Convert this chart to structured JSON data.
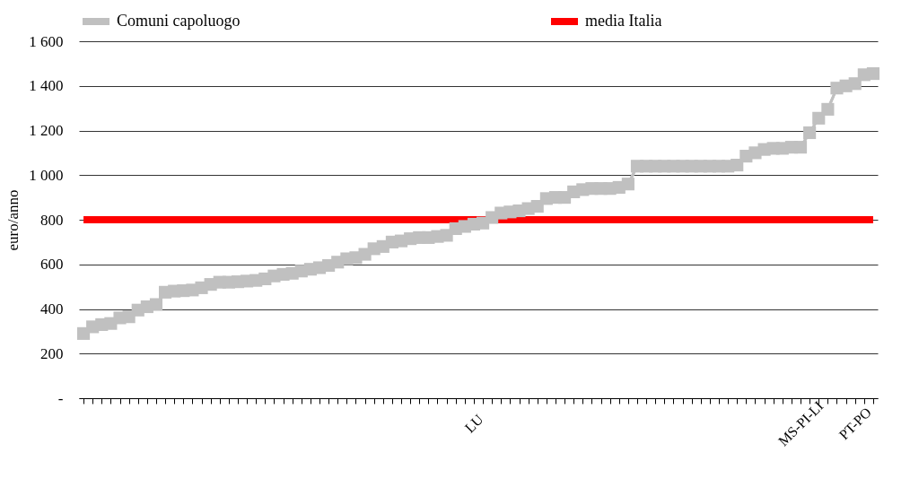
{
  "chart_data": {
    "type": "line",
    "ylabel": "euro/anno",
    "categories": [
      null,
      null,
      null,
      null,
      null,
      null,
      null,
      null,
      null,
      null,
      null,
      null,
      null,
      null,
      null,
      null,
      null,
      null,
      null,
      null,
      null,
      null,
      null,
      null,
      null,
      null,
      null,
      null,
      null,
      null,
      null,
      null,
      null,
      null,
      null,
      null,
      null,
      null,
      null,
      null,
      null,
      null,
      null,
      "LU",
      null,
      null,
      null,
      null,
      null,
      null,
      null,
      null,
      null,
      null,
      null,
      null,
      null,
      null,
      null,
      null,
      null,
      null,
      null,
      null,
      null,
      null,
      null,
      null,
      null,
      null,
      null,
      null,
      null,
      null,
      null,
      null,
      null,
      null,
      null,
      "MS-PI-LI",
      null,
      null,
      null,
      null,
      null,
      "PT-PO",
      null,
      null
    ],
    "series": [
      {
        "name": "Comuni capoluogo",
        "color": "#c0c0c0",
        "marker": "square",
        "values": [
          290,
          320,
          330,
          335,
          360,
          365,
          395,
          410,
          420,
          475,
          480,
          482,
          485,
          495,
          510,
          520,
          520,
          522,
          525,
          528,
          535,
          548,
          555,
          560,
          570,
          578,
          585,
          595,
          610,
          625,
          630,
          645,
          670,
          680,
          700,
          705,
          715,
          720,
          720,
          725,
          730,
          760,
          770,
          780,
          785,
          810,
          830,
          835,
          840,
          850,
          860,
          895,
          900,
          900,
          925,
          935,
          940,
          940,
          940,
          945,
          960,
          1040,
          1040,
          1040,
          1040,
          1040,
          1040,
          1040,
          1040,
          1040,
          1040,
          1040,
          1045,
          1085,
          1100,
          1115,
          1120,
          1120,
          1125,
          1125,
          1190,
          1255,
          1295,
          1390,
          1400,
          1410,
          1450,
          1455
        ]
      },
      {
        "name": "media Italia",
        "color": "#ff0000",
        "marker": "none",
        "values": [
          800,
          800,
          800,
          800,
          800,
          800,
          800,
          800,
          800,
          800,
          800,
          800,
          800,
          800,
          800,
          800,
          800,
          800,
          800,
          800,
          800,
          800,
          800,
          800,
          800,
          800,
          800,
          800,
          800,
          800,
          800,
          800,
          800,
          800,
          800,
          800,
          800,
          800,
          800,
          800,
          800,
          800,
          800,
          800,
          800,
          800,
          800,
          800,
          800,
          800,
          800,
          800,
          800,
          800,
          800,
          800,
          800,
          800,
          800,
          800,
          800,
          800,
          800,
          800,
          800,
          800,
          800,
          800,
          800,
          800,
          800,
          800,
          800,
          800,
          800,
          800,
          800,
          800,
          800,
          800,
          800,
          800,
          800,
          800,
          800,
          800,
          800,
          800
        ]
      }
    ],
    "ylim": [
      0,
      1600
    ],
    "yticks": [
      {
        "value": 0,
        "label": "-"
      },
      200,
      400,
      600,
      800,
      {
        "value": 1000,
        "label": "1 000"
      },
      {
        "value": 1200,
        "label": "1 200"
      },
      {
        "value": 1400,
        "label": "1 400"
      },
      {
        "value": 1600,
        "label": "1 600"
      }
    ],
    "grid": "y",
    "legend": "top"
  }
}
